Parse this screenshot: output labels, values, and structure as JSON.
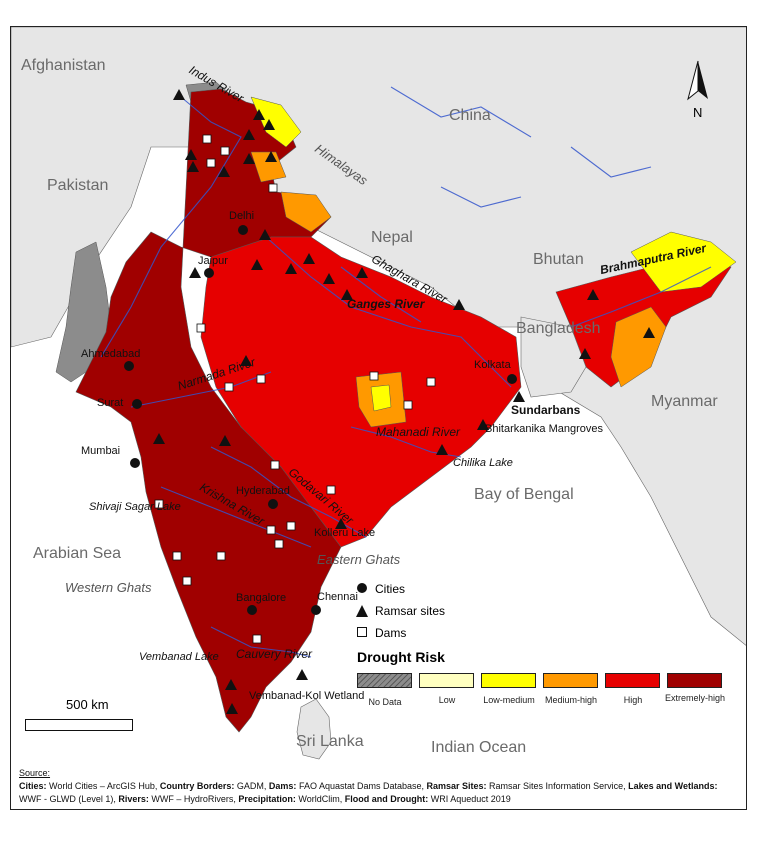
{
  "map": {
    "countries": [
      "Afghanistan",
      "China",
      "Pakistan",
      "Nepal",
      "Bhutan",
      "Bangladesh",
      "Myanmar",
      "Sri Lanka"
    ],
    "seas": [
      "Arabian Sea",
      "Bay of Bengal",
      "Indian Ocean"
    ],
    "rivers": [
      "Indus River",
      "Ganges River",
      "Ghaghara River",
      "Brahmaputra River",
      "Narmada River",
      "Mahanadi River",
      "Godavari River",
      "Krishna River",
      "Cauvery River"
    ],
    "ranges": [
      "Himalayas",
      "Western Ghats",
      "Eastern Ghats"
    ],
    "cities": [
      "Delhi",
      "Jaipur",
      "Ahmedabad",
      "Surat",
      "Mumbai",
      "Hyderabad",
      "Bangalore",
      "Chennai",
      "Kolkata"
    ],
    "wetlands": [
      "Sundarbans",
      "Bhitarkanika Mangroves",
      "Chilika Lake",
      "Kolleru Lake",
      "Shivaji Sagar Lake",
      "Vembanad Lake",
      "Vembanad-Kol Wetland"
    ],
    "north": "N",
    "scale": "500 km"
  },
  "legend": {
    "cities": "Cities",
    "ramsar": "Ramsar sites",
    "dams": "Dams",
    "drought_title": "Drought Risk",
    "classes": [
      {
        "label": "No Data",
        "color": "#8c8c8c"
      },
      {
        "label": "Low",
        "color": "#ffffc0"
      },
      {
        "label": "Low-medium",
        "color": "#ffff00"
      },
      {
        "label": "Medium-high",
        "color": "#ff9900"
      },
      {
        "label": "High",
        "color": "#e60000"
      },
      {
        "label": "Extremely-high",
        "color": "#a00000"
      }
    ]
  },
  "source": {
    "heading": "Source:",
    "cities_h": "Cities:",
    "cities_t": " World Cities – ArcGIS Hub, ",
    "borders_h": "Country Borders:",
    "borders_t": " GADM, ",
    "dams_h": "Dams:",
    "dams_t": " FAO Aquastat Dams Database, ",
    "ramsar_h": "Ramsar Sites:",
    "ramsar_t": " Ramsar Sites Information Service, ",
    "lakes_h": "Lakes and Wetlands:",
    "lakes_t": " WWF - GLWD (Level 1), ",
    "rivers_h": "Rivers:",
    "rivers_t": " WWF – HydroRivers, ",
    "precip_h": "Precipitation:",
    "precip_t": " WorldClim, ",
    "flood_h": "Flood and Drought:",
    "flood_t": " WRI Aqueduct 2019"
  }
}
